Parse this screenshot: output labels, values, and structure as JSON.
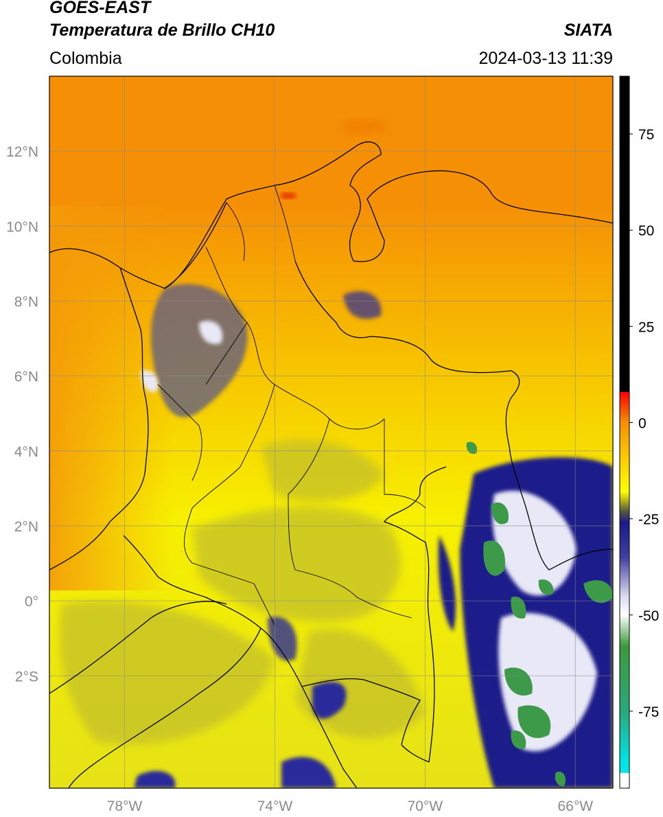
{
  "header": {
    "satellite": "GOES-EAST",
    "product": "Temperatura de Brillo CH10",
    "region": "Colombia",
    "agency": "SIATA",
    "timestamp": "2024-03-13 11:39"
  },
  "map": {
    "lon_range": [
      -80,
      -65
    ],
    "lat_range": [
      -5,
      14
    ],
    "lon_ticks": [
      {
        "value": -78,
        "label": "78°W"
      },
      {
        "value": -74,
        "label": "74°W"
      },
      {
        "value": -70,
        "label": "70°W"
      },
      {
        "value": -66,
        "label": "66°W"
      }
    ],
    "lat_ticks": [
      {
        "value": 12,
        "label": "12°N"
      },
      {
        "value": 10,
        "label": "10°N"
      },
      {
        "value": 8,
        "label": "8°N"
      },
      {
        "value": 6,
        "label": "6°N"
      },
      {
        "value": 4,
        "label": "4°N"
      },
      {
        "value": 2,
        "label": "2°N"
      },
      {
        "value": 0,
        "label": "0°"
      },
      {
        "value": -2,
        "label": "2°S"
      }
    ],
    "grid": true,
    "background_colors": {
      "north": "#f58f05",
      "mid": "#f7c600",
      "south": "#e6e217",
      "land_yellow": "#f7f000"
    }
  },
  "colorbar": {
    "range": [
      -95,
      90
    ],
    "ticks": [
      {
        "value": 75,
        "label": "75"
      },
      {
        "value": 50,
        "label": "50"
      },
      {
        "value": 25,
        "label": "25"
      },
      {
        "value": 0,
        "label": "0"
      },
      {
        "value": -25,
        "label": "-25"
      },
      {
        "value": -50,
        "label": "-50"
      },
      {
        "value": -75,
        "label": "-75"
      }
    ],
    "stops": [
      {
        "value": 90,
        "color": "#000000"
      },
      {
        "value": 8,
        "color": "#000000"
      },
      {
        "value": 7.9,
        "color": "#ff0000"
      },
      {
        "value": 0,
        "color": "#f58f05"
      },
      {
        "value": -10,
        "color": "#ffd000"
      },
      {
        "value": -18,
        "color": "#ffff00"
      },
      {
        "value": -23,
        "color": "#5a5a3a"
      },
      {
        "value": -26,
        "color": "#1a1a8c"
      },
      {
        "value": -35,
        "color": "#4040a0"
      },
      {
        "value": -45,
        "color": "#d8d8f0"
      },
      {
        "value": -50,
        "color": "#ffffff"
      },
      {
        "value": -58,
        "color": "#3c9a3c"
      },
      {
        "value": -75,
        "color": "#2aa87a"
      },
      {
        "value": -88,
        "color": "#00e5e5"
      },
      {
        "value": -91,
        "color": "#00e5e5"
      },
      {
        "value": -91.1,
        "color": "#ffffff"
      },
      {
        "value": -95,
        "color": "#ffffff"
      }
    ]
  }
}
